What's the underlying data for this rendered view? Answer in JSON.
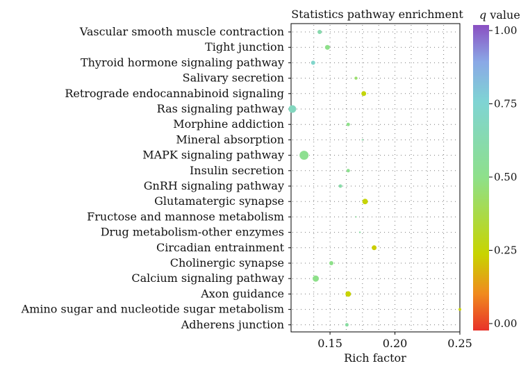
{
  "chart_data": {
    "type": "scatter",
    "title": "Statistics pathway enrichment",
    "xlabel": "Rich factor",
    "ylabel": "",
    "xlim": [
      0.12,
      0.25
    ],
    "x_ticks": [
      0.15,
      0.2,
      0.25
    ],
    "x_tick_labels": [
      "0.15",
      "0.20",
      "0.25"
    ],
    "grid": true,
    "legend": {
      "title_italic": "q",
      "title_rest": " value",
      "placement": "right",
      "range": [
        0,
        1
      ],
      "ticks": [
        0,
        0.25,
        0.5,
        0.75,
        1.0
      ],
      "tick_labels": [
        "0.00",
        "0.25",
        "0.50",
        "0.75",
        "1.00"
      ],
      "colors": [
        "#e8322a",
        "#f08a1e",
        "#c8d400",
        "#8ee08a",
        "#7fd4d4",
        "#8aa8e6",
        "#8a4fc2"
      ]
    },
    "categories": [
      "Vascular smooth muscle contraction",
      "Tight junction",
      "Thyroid hormone signaling pathway",
      "Salivary secretion",
      "Retrograde endocannabinoid signaling",
      "Ras signaling pathway",
      "Morphine addiction",
      "Mineral absorption",
      "MAPK signaling pathway",
      "Insulin secretion",
      "GnRH signaling pathway",
      "Glutamatergic synapse",
      "Fructose and mannose metabolism",
      "Drug metabolism-other enzymes",
      "Circadian entrainment",
      "Cholinergic synapse",
      "Calcium signaling pathway",
      "Axon guidance",
      "Amino sugar and nucleotide sugar metabolism",
      "Adherens junction"
    ],
    "points": [
      {
        "x": 0.142,
        "q": 0.62,
        "size": 3.0
      },
      {
        "x": 0.148,
        "q": 0.5,
        "size": 3.5
      },
      {
        "x": 0.137,
        "q": 0.72,
        "size": 3.0
      },
      {
        "x": 0.17,
        "q": 0.45,
        "size": 2.2
      },
      {
        "x": 0.176,
        "q": 0.27,
        "size": 3.5
      },
      {
        "x": 0.121,
        "q": 0.68,
        "size": 5.5
      },
      {
        "x": 0.164,
        "q": 0.5,
        "size": 2.5
      },
      {
        "x": 0.175,
        "q": 0.6,
        "size": 1.2
      },
      {
        "x": 0.13,
        "q": 0.52,
        "size": 6.5
      },
      {
        "x": 0.164,
        "q": 0.52,
        "size": 2.5
      },
      {
        "x": 0.158,
        "q": 0.6,
        "size": 2.5
      },
      {
        "x": 0.177,
        "q": 0.26,
        "size": 4.0
      },
      {
        "x": 0.17,
        "q": 0.55,
        "size": 1.0
      },
      {
        "x": 0.173,
        "q": 0.58,
        "size": 1.2
      },
      {
        "x": 0.184,
        "q": 0.24,
        "size": 3.5
      },
      {
        "x": 0.151,
        "q": 0.5,
        "size": 3.0
      },
      {
        "x": 0.139,
        "q": 0.5,
        "size": 4.5
      },
      {
        "x": 0.164,
        "q": 0.25,
        "size": 4.0
      },
      {
        "x": 0.25,
        "q": 0.25,
        "size": 2.0
      },
      {
        "x": 0.163,
        "q": 0.58,
        "size": 2.5
      }
    ]
  }
}
